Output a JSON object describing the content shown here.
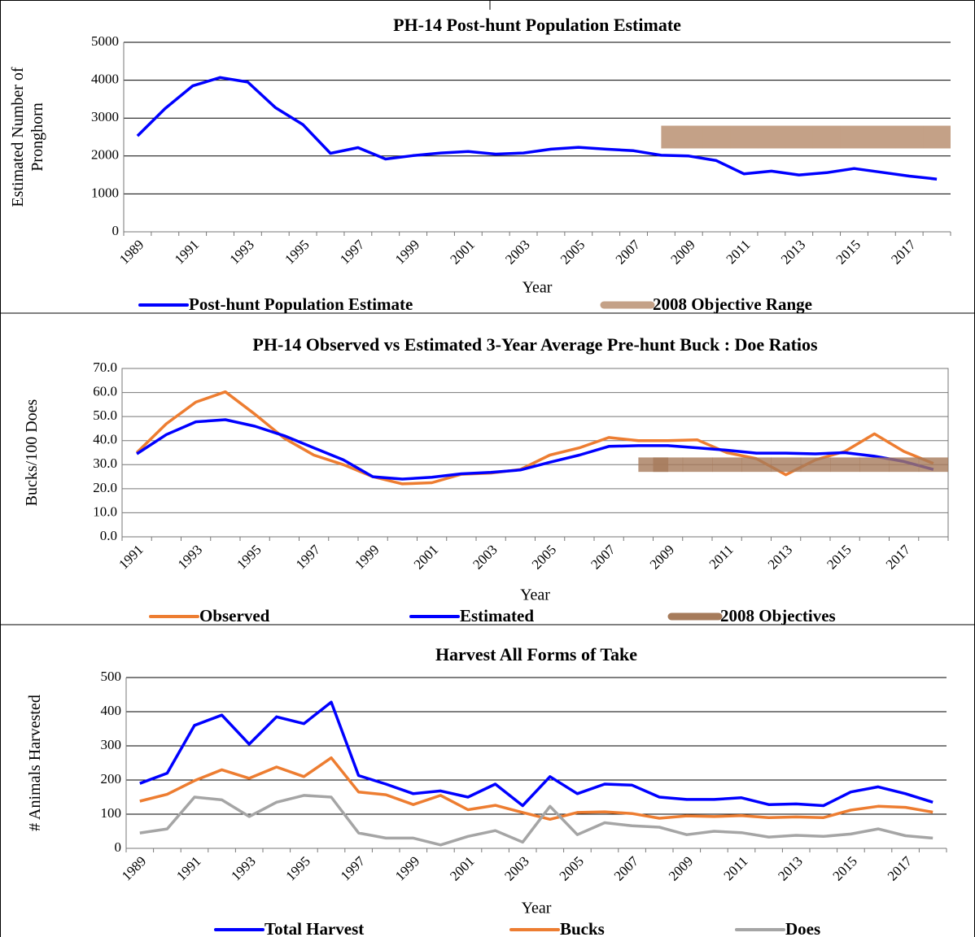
{
  "charts": [
    {
      "chart_data": {
        "type": "line",
        "title": "PH-14 Post-hunt Population Estimate",
        "y_label": [
          "Estimated Number of",
          "Pronghorn"
        ],
        "x_label": "Year",
        "categories": [
          "1989",
          null,
          "1991",
          null,
          "1993",
          null,
          "1995",
          null,
          "1997",
          null,
          "1999",
          null,
          "2001",
          null,
          "2003",
          null,
          "2005",
          null,
          "2007",
          null,
          "2009",
          null,
          "2011",
          null,
          "2013",
          null,
          "2015",
          null,
          "2017",
          null
        ],
        "ylim": [
          0,
          5000
        ],
        "yticks": [
          0,
          1000,
          2000,
          3000,
          4000,
          5000
        ],
        "grid": true,
        "frame": false,
        "series": [
          {
            "name": "Post-hunt Population Estimate",
            "color": "#0000ff",
            "values": [
              2530,
              3250,
              3850,
              4070,
              3950,
              3280,
              2830,
              2070,
              2220,
              1920,
              2010,
              2080,
              2120,
              2050,
              2080,
              2180,
              2230,
              2180,
              2140,
              2020,
              2000,
              1880,
              1530,
              1600,
              1500,
              1560,
              1670,
              1570,
              1470,
              1390
            ]
          },
          {
            "name": "2008 Objective Range",
            "color": "#c4a187",
            "kind": "range",
            "low": [
              null,
              null,
              null,
              null,
              null,
              null,
              null,
              null,
              null,
              null,
              null,
              null,
              null,
              null,
              null,
              null,
              null,
              null,
              null,
              2200,
              2200,
              2200,
              2200,
              2200,
              2200,
              2200,
              2200,
              2200,
              2200,
              2200
            ],
            "high": [
              null,
              null,
              null,
              null,
              null,
              null,
              null,
              null,
              null,
              null,
              null,
              null,
              null,
              null,
              null,
              null,
              null,
              null,
              null,
              2800,
              2800,
              2800,
              2800,
              2800,
              2800,
              2800,
              2800,
              2800,
              2800,
              2800
            ]
          }
        ]
      }
    },
    {
      "chart_data": {
        "type": "line",
        "title": "PH-14 Observed vs Estimated 3-Year Average Pre-hunt Buck : Doe Ratios",
        "y_label": [
          "Bucks/100 Does"
        ],
        "x_label": "Year",
        "categories": [
          "1991",
          null,
          "1993",
          null,
          "1995",
          null,
          "1997",
          null,
          "1999",
          null,
          "2001",
          null,
          "2003",
          null,
          "2005",
          null,
          "2007",
          null,
          "2009",
          null,
          "2011",
          null,
          "2013",
          null,
          "2015",
          null,
          "2017",
          null
        ],
        "ylim": [
          0,
          70
        ],
        "yticks": [
          {
            "value": 0,
            "label": "0.0"
          },
          {
            "value": 10,
            "label": "10.0"
          },
          {
            "value": 20,
            "label": "20.0"
          },
          {
            "value": 30,
            "label": "30.0"
          },
          {
            "value": 40,
            "label": "40.0"
          },
          {
            "value": 50,
            "label": "50.0"
          },
          {
            "value": 60,
            "label": "60.0"
          },
          {
            "value": 70,
            "label": "70.0"
          }
        ],
        "grid": true,
        "frame": true,
        "series": [
          {
            "name": "Observed",
            "color": "#ed7d31",
            "values": [
              35,
              47,
              56,
              60.3,
              51,
              41,
              34,
              30,
              25,
              22,
              22.5,
              26,
              26.5,
              28,
              34,
              37,
              41.3,
              40,
              40,
              40.3,
              35,
              32.5,
              25.8,
              32,
              35.5,
              42.8,
              35.5,
              30.5
            ]
          },
          {
            "name": "Estimated",
            "color": "#0000ff",
            "values": [
              34.5,
              42.5,
              47.8,
              48.7,
              46,
              42,
              37,
              32,
              25,
              24,
              24.8,
              26.2,
              26.8,
              27.8,
              31,
              34,
              37.6,
              37.9,
              37.9,
              37,
              36,
              34.8,
              34.8,
              34.5,
              35,
              33.5,
              31.3,
              28
            ]
          },
          {
            "name": "2008 Objectives",
            "color": "#a67b5b",
            "kind": "range",
            "low": [
              null,
              null,
              null,
              null,
              null,
              null,
              null,
              null,
              null,
              null,
              null,
              null,
              null,
              null,
              null,
              null,
              null,
              27,
              27,
              27,
              27,
              27,
              27,
              27,
              27,
              27,
              27,
              27
            ],
            "high": [
              null,
              null,
              null,
              null,
              null,
              null,
              null,
              null,
              null,
              null,
              null,
              null,
              null,
              null,
              null,
              null,
              null,
              33,
              33,
              33,
              33,
              33,
              33,
              33,
              33,
              33,
              33,
              33
            ]
          }
        ]
      }
    },
    {
      "chart_data": {
        "type": "line",
        "title": "Harvest All Forms of Take",
        "y_label": [
          "# Animals Harvested"
        ],
        "x_label": "Year",
        "categories": [
          "1989",
          null,
          "1991",
          null,
          "1993",
          null,
          "1995",
          null,
          "1997",
          null,
          "1999",
          null,
          "2001",
          null,
          "2003",
          null,
          "2005",
          null,
          "2007",
          null,
          "2009",
          null,
          "2011",
          null,
          "2013",
          null,
          "2015",
          null,
          "2017",
          null
        ],
        "ylim": [
          0,
          500
        ],
        "yticks": [
          0,
          100,
          200,
          300,
          400,
          500
        ],
        "grid": true,
        "frame": false,
        "series": [
          {
            "name": "Total Harvest",
            "color": "#0000ff",
            "values": [
              190,
              220,
              360,
              390,
              305,
              385,
              365,
              428,
              213,
              188,
              160,
              168,
              150,
              188,
              125,
              210,
              160,
              188,
              185,
              150,
              143,
              143,
              148,
              128,
              130,
              125,
              165,
              180,
              160,
              135
            ]
          },
          {
            "name": "Bucks",
            "color": "#ed7d31",
            "values": [
              138,
              158,
              198,
              230,
              205,
              238,
              210,
              265,
              165,
              157,
              128,
              155,
              113,
              126,
              105,
              85,
              105,
              107,
              102,
              88,
              95,
              93,
              96,
              90,
              92,
              90,
              112,
              123,
              120,
              106
            ]
          },
          {
            "name": "Does",
            "color": "#a5a5a5",
            "values": [
              45,
              57,
              150,
              142,
              93,
              135,
              155,
              150,
              45,
              30,
              30,
              10,
              35,
              52,
              18,
              123,
              40,
              75,
              66,
              62,
              40,
              50,
              46,
              33,
              38,
              35,
              42,
              57,
              37,
              30
            ]
          }
        ]
      }
    }
  ]
}
